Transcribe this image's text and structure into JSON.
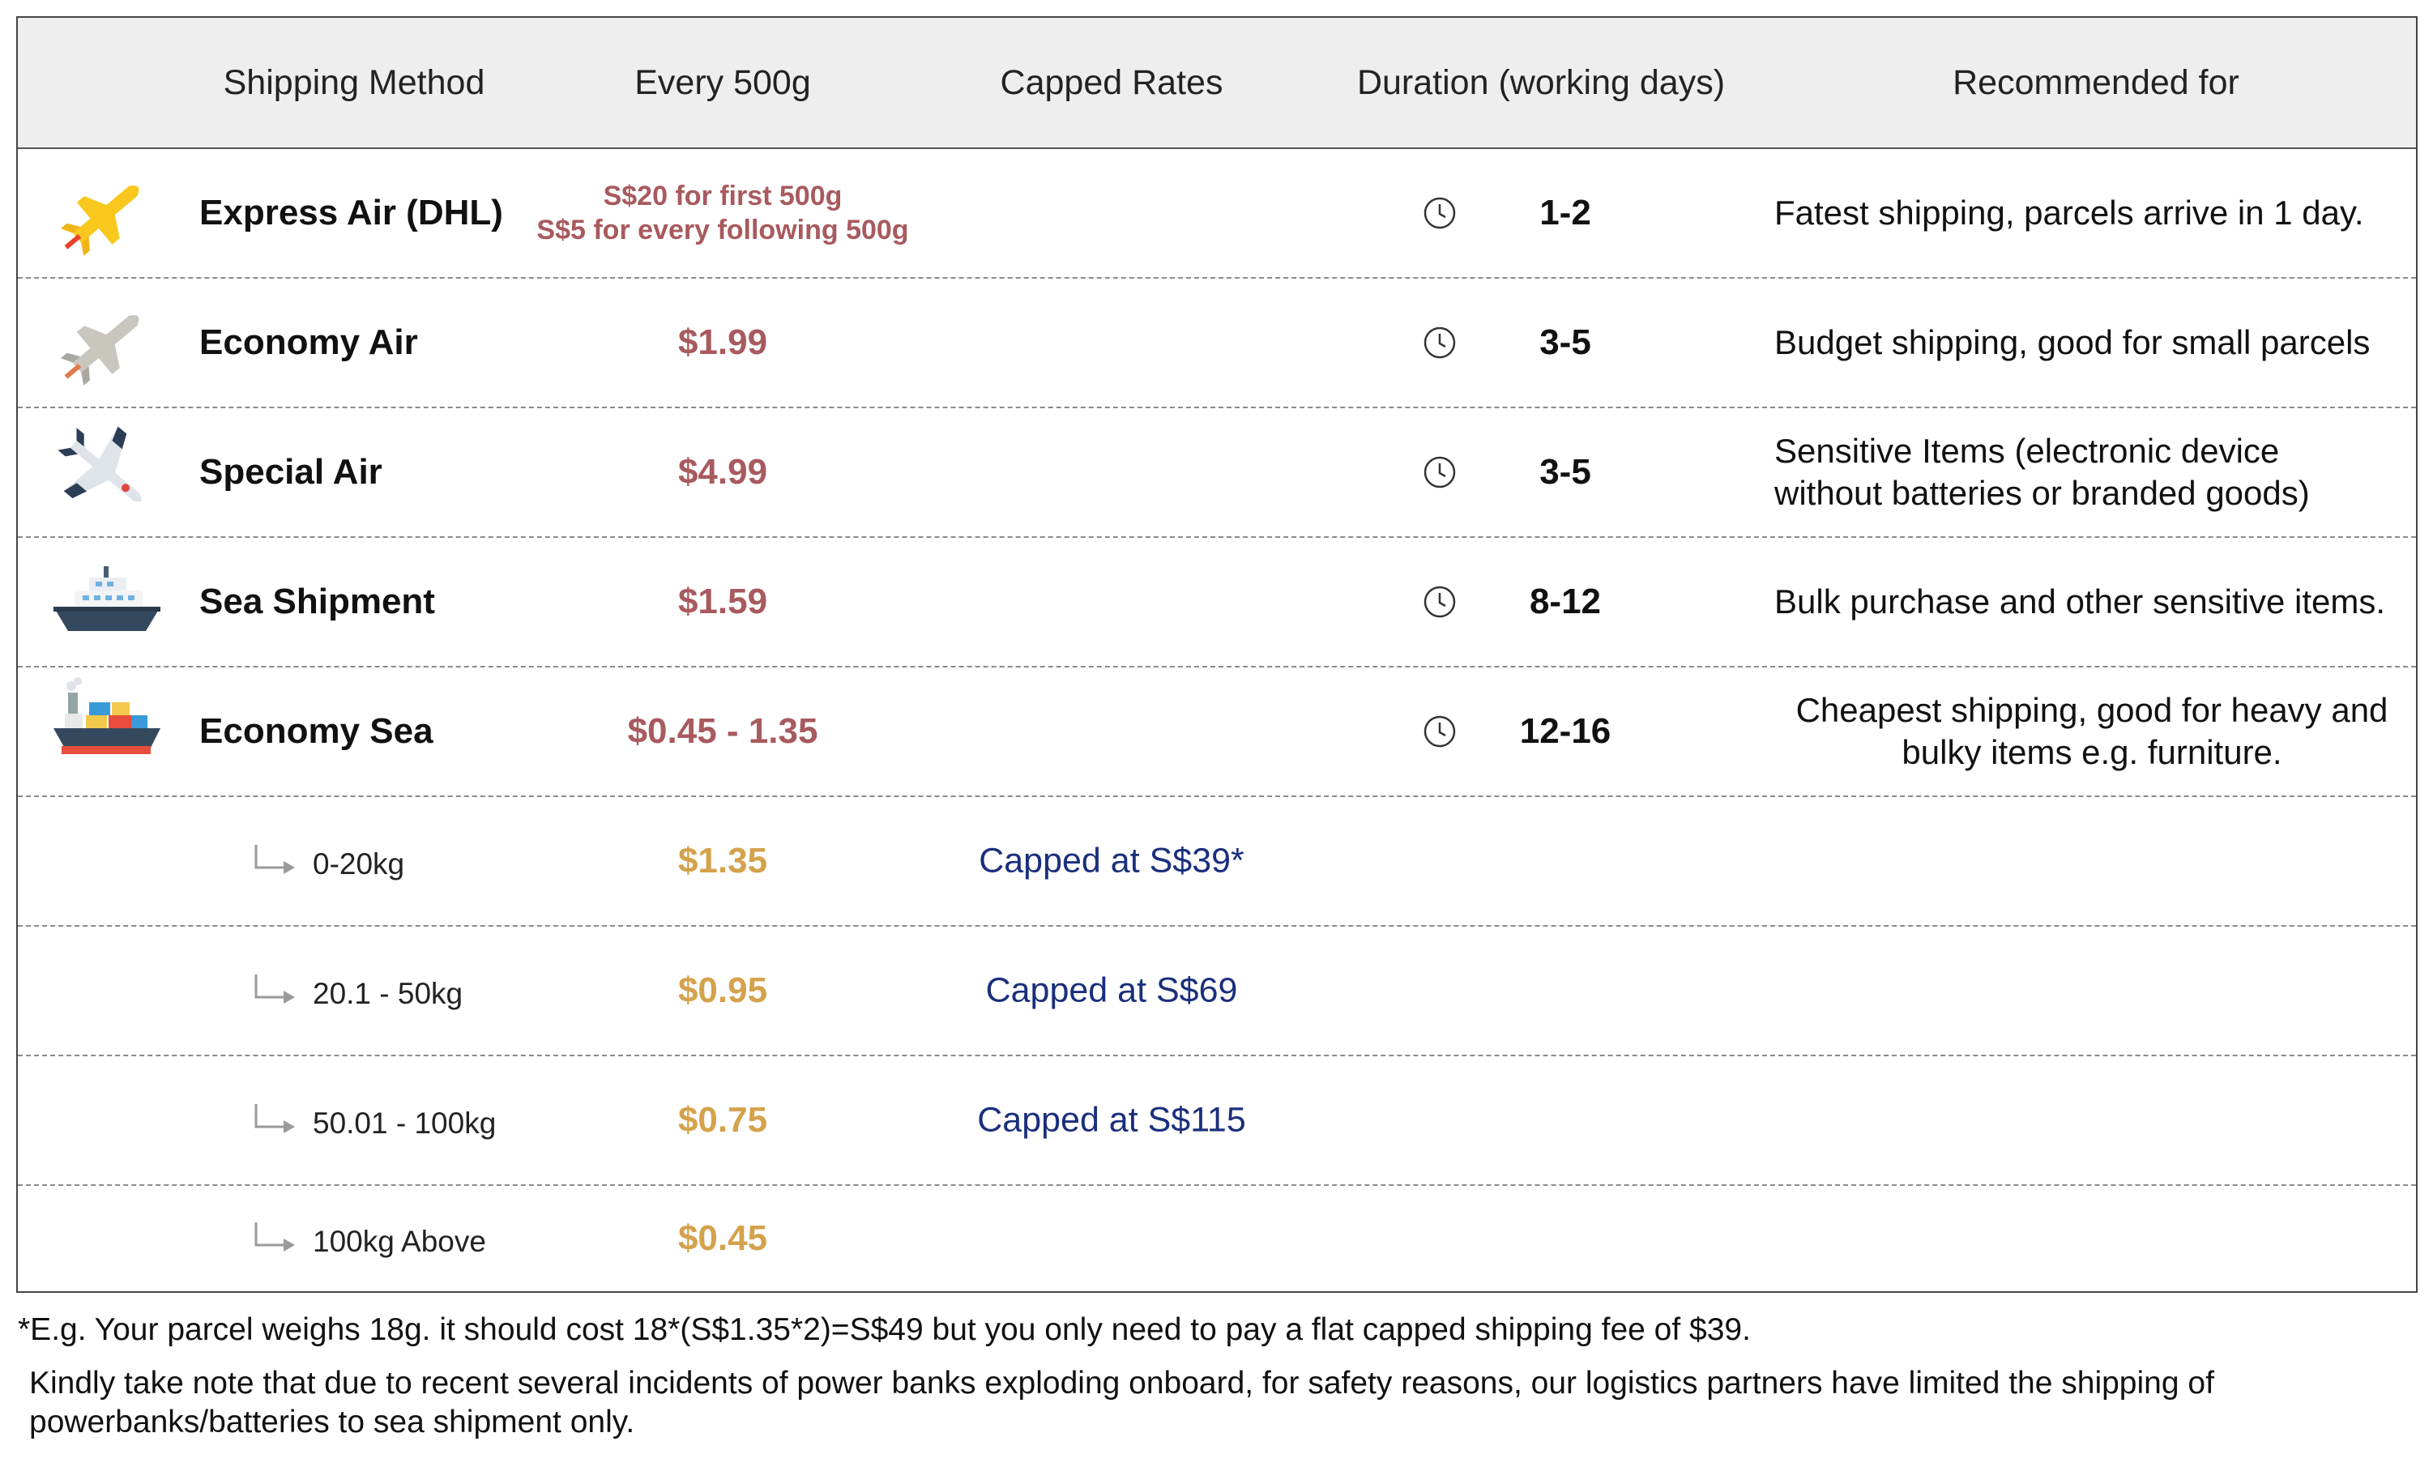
{
  "header": {
    "method": "Shipping Method",
    "every": "Every 500g",
    "capped": "Capped Rates",
    "duration": "Duration (working days)",
    "recommended": "Recommended for"
  },
  "rows": [
    {
      "icon": "yellow-airplane-icon",
      "name": "Express Air (DHL)",
      "price_line1": "S$20 for first 500g",
      "price_line2": "S$5 for every following 500g",
      "duration": "1-2",
      "rec_line1": "Fatest shipping, parcels arrive in 1 day.",
      "rec_line2": ""
    },
    {
      "icon": "grey-airplane-icon",
      "name": "Economy Air",
      "price": "$1.99",
      "duration": "3-5",
      "rec_line1": "Budget shipping, good for small parcels",
      "rec_line2": ""
    },
    {
      "icon": "jet-airplane-icon",
      "name": "Special Air",
      "price": "$4.99",
      "duration": "3-5",
      "rec_line1": "Sensitive Items (electronic device",
      "rec_line2": "without batteries or branded goods)"
    },
    {
      "icon": "cruise-ship-icon",
      "name": "Sea Shipment",
      "price": "$1.59",
      "duration": "8-12",
      "rec_line1": "Bulk purchase and other sensitive items.",
      "rec_line2": ""
    },
    {
      "icon": "cargo-ship-icon",
      "name": "Economy Sea",
      "price": "$0.45 - 1.35",
      "duration": "12-16",
      "rec_line1": "Cheapest shipping, good for heavy and",
      "rec_line2": "bulky items e.g. furniture."
    }
  ],
  "subrows": [
    {
      "label": "0-20kg",
      "price": "$1.35",
      "cap": "Capped at S$39*"
    },
    {
      "label": "20.1 - 50kg",
      "price": "$0.95",
      "cap": "Capped at S$69"
    },
    {
      "label": "50.01 - 100kg",
      "price": "$0.75",
      "cap": "Capped at S$115"
    },
    {
      "label": "100kg Above",
      "price": "$0.45",
      "cap": ""
    }
  ],
  "notes": {
    "example": "*E.g. Your parcel weighs 18g. it should cost 18*(S$1.35*2)=S$49 but you only need to pay a flat capped shipping fee of $39.",
    "warning_line1": "Kindly take note that due to recent several incidents of power banks exploding onboard, for safety reasons, our logistics partners have limited the shipping of",
    "warning_line2": "powerbanks/batteries to sea shipment only."
  },
  "colors": {
    "price": "#a85a5e",
    "sub_price": "#d4a24c",
    "capped": "#1a2f7c",
    "header_bg": "#eeeeee"
  }
}
